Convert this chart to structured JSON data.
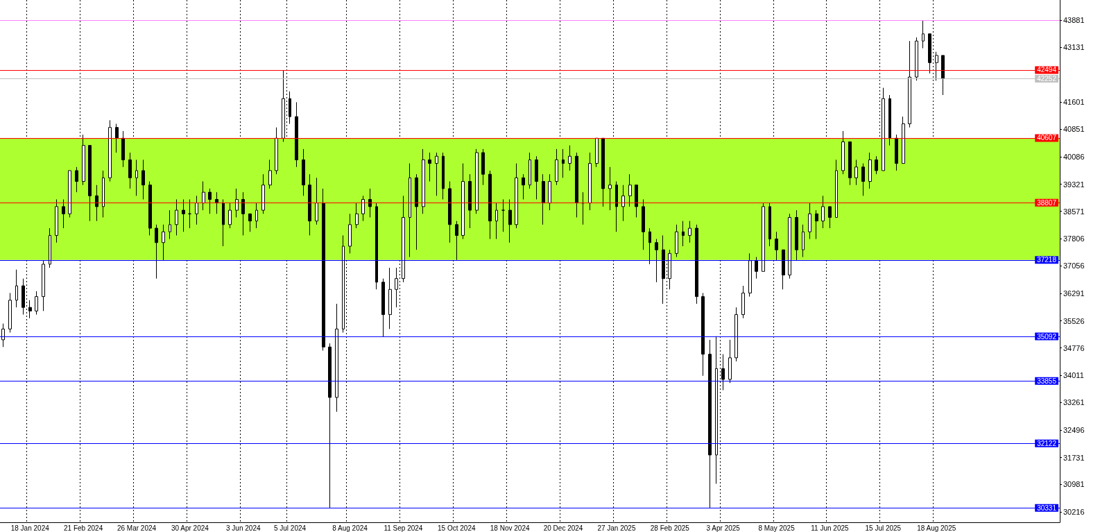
{
  "chart_data": {
    "type": "candlestick",
    "categories": [
      null,
      null,
      null,
      null,
      "18 Jan 2024",
      null,
      null,
      null,
      null,
      null,
      null,
      null,
      "21 Feb 2024",
      null,
      null,
      null,
      null,
      null,
      null,
      null,
      "26 Mar 2024",
      null,
      null,
      null,
      null,
      null,
      null,
      null,
      "30 Apr 2024",
      null,
      null,
      null,
      null,
      null,
      null,
      null,
      "3 Jun 2024",
      null,
      null,
      null,
      null,
      null,
      null,
      "5 Jul 2024",
      null,
      null,
      null,
      null,
      null,
      null,
      null,
      null,
      "8 Aug 2024",
      null,
      null,
      null,
      null,
      null,
      null,
      null,
      "11 Sep 2024",
      null,
      null,
      null,
      null,
      null,
      null,
      null,
      "15 Oct 2024",
      null,
      null,
      null,
      null,
      null,
      null,
      null,
      "18 Nov 2024",
      null,
      null,
      null,
      null,
      null,
      null,
      null,
      "20 Dec 2024",
      null,
      null,
      null,
      null,
      null,
      null,
      null,
      "27 Jan 2025",
      null,
      null,
      null,
      null,
      null,
      null,
      null,
      "28 Feb 2025",
      null,
      null,
      null,
      null,
      null,
      null,
      null,
      "3 Apr 2025",
      null,
      null,
      null,
      null,
      null,
      null,
      null,
      "8 May 2025",
      null,
      null,
      null,
      null,
      null,
      null,
      null,
      "11 Jun 2025",
      null,
      null,
      null,
      null,
      null,
      null,
      null,
      "15 Jul 2025",
      null,
      null,
      null,
      null,
      null,
      null,
      null,
      "18 Aug 2025",
      null,
      null,
      null,
      null,
      null,
      null,
      null,
      null,
      null,
      null,
      null,
      null,
      null,
      null,
      null,
      null,
      null,
      null
    ],
    "series": [
      {
        "color": "#000000",
        "ohlc": [
          [
            35000,
            35450,
            34800,
            35300
          ],
          [
            35300,
            36300,
            35200,
            36100
          ],
          [
            36100,
            36950,
            35900,
            36500
          ],
          [
            36500,
            36700,
            35700,
            35900
          ],
          [
            35900,
            36100,
            35600,
            35800
          ],
          [
            35800,
            36350,
            35700,
            36200
          ],
          [
            36200,
            37200,
            35800,
            37100
          ],
          [
            37100,
            38100,
            37000,
            37900
          ],
          [
            37900,
            38900,
            37700,
            38700
          ],
          [
            38700,
            38900,
            38100,
            38500
          ],
          [
            38500,
            39700,
            38400,
            39700
          ],
          [
            39700,
            39800,
            39100,
            39400
          ],
          [
            39400,
            40700,
            39300,
            40400
          ],
          [
            40400,
            40400,
            38300,
            39000
          ],
          [
            39000,
            39300,
            38300,
            38700
          ],
          [
            38700,
            39700,
            38400,
            39500
          ],
          [
            39500,
            41100,
            39400,
            40900
          ],
          [
            40900,
            41000,
            40200,
            40600
          ],
          [
            40600,
            40800,
            39800,
            40000
          ],
          [
            40000,
            40200,
            39200,
            39500
          ],
          [
            39500,
            40000,
            39000,
            39700
          ],
          [
            39700,
            40000,
            38900,
            39300
          ],
          [
            39300,
            39400,
            37900,
            38100
          ],
          [
            38100,
            38200,
            36700,
            37700
          ],
          [
            37700,
            38200,
            37200,
            38000
          ],
          [
            38000,
            38600,
            37800,
            38200
          ],
          [
            38200,
            38900,
            37900,
            38600
          ],
          [
            38600,
            38900,
            38000,
            38500
          ],
          [
            38500,
            38900,
            38100,
            38500
          ],
          [
            38500,
            39000,
            38200,
            38800
          ],
          [
            38800,
            39400,
            38600,
            39100
          ],
          [
            39100,
            39200,
            38500,
            38900
          ],
          [
            38900,
            39100,
            38500,
            38800
          ],
          [
            38800,
            38900,
            37600,
            38200
          ],
          [
            38200,
            38800,
            38100,
            38600
          ],
          [
            38600,
            39200,
            38400,
            38900
          ],
          [
            38900,
            39100,
            37900,
            38500
          ],
          [
            38500,
            38500,
            38000,
            38300
          ],
          [
            38300,
            38800,
            38100,
            38600
          ],
          [
            38600,
            39600,
            38500,
            39300
          ],
          [
            39300,
            40000,
            39200,
            39700
          ],
          [
            39700,
            40900,
            39600,
            40600
          ],
          [
            40600,
            42494,
            40500,
            41700
          ],
          [
            41700,
            41900,
            41000,
            41200
          ],
          [
            41200,
            41600,
            39800,
            40000
          ],
          [
            40000,
            40300,
            39000,
            39300
          ],
          [
            39300,
            39600,
            37900,
            38300
          ],
          [
            38300,
            39500,
            38200,
            38800
          ],
          [
            38800,
            39200,
            34700,
            34800
          ],
          [
            34800,
            34900,
            30331,
            33400
          ],
          [
            33400,
            36000,
            33000,
            35300
          ],
          [
            35300,
            37900,
            35200,
            37600
          ],
          [
            37600,
            38500,
            37400,
            38200
          ],
          [
            38200,
            38800,
            38100,
            38500
          ],
          [
            38500,
            39000,
            38300,
            38900
          ],
          [
            38900,
            39200,
            38400,
            38700
          ],
          [
            38700,
            38800,
            36400,
            36600
          ],
          [
            36600,
            36700,
            35092,
            35700
          ],
          [
            35700,
            37000,
            35300,
            36400
          ],
          [
            36400,
            37000,
            35900,
            36700
          ],
          [
            36700,
            39000,
            36600,
            38400
          ],
          [
            38400,
            39900,
            37300,
            39500
          ],
          [
            39500,
            39600,
            37500,
            38700
          ],
          [
            38700,
            40300,
            38500,
            40000
          ],
          [
            40000,
            40200,
            39400,
            39900
          ],
          [
            39900,
            40200,
            39000,
            40100
          ],
          [
            40100,
            40200,
            38900,
            39200
          ],
          [
            39200,
            39400,
            37700,
            38200
          ],
          [
            38200,
            38300,
            37218,
            37900
          ],
          [
            37900,
            39900,
            37800,
            39400
          ],
          [
            39400,
            39600,
            38100,
            38600
          ],
          [
            38600,
            40300,
            38500,
            40200
          ],
          [
            40200,
            40300,
            39300,
            39600
          ],
          [
            39600,
            39700,
            37800,
            38300
          ],
          [
            38300,
            38800,
            37800,
            38600
          ],
          [
            38600,
            38900,
            38000,
            38600
          ],
          [
            38600,
            38900,
            37700,
            38200
          ],
          [
            38200,
            39900,
            38100,
            39500
          ],
          [
            39500,
            39600,
            38900,
            39300
          ],
          [
            39300,
            40200,
            39200,
            40000
          ],
          [
            40000,
            40100,
            38900,
            39400
          ],
          [
            39400,
            39600,
            38200,
            38800
          ],
          [
            38800,
            39600,
            38600,
            39400
          ],
          [
            39400,
            40300,
            39300,
            40000
          ],
          [
            40000,
            40300,
            39500,
            39900
          ],
          [
            39900,
            40400,
            39700,
            40100
          ],
          [
            40100,
            40200,
            38400,
            38800
          ],
          [
            38800,
            39100,
            38200,
            38800
          ],
          [
            38800,
            40200,
            38600,
            39900
          ],
          [
            39900,
            40607,
            39800,
            40600
          ],
          [
            40600,
            40600,
            38700,
            39200
          ],
          [
            39200,
            39800,
            38600,
            39300
          ],
          [
            39300,
            39400,
            38000,
            38700
          ],
          [
            38700,
            39300,
            38300,
            39000
          ],
          [
            39000,
            39600,
            38700,
            39300
          ],
          [
            39300,
            39300,
            38400,
            38700
          ],
          [
            38700,
            38900,
            37500,
            38000
          ],
          [
            38000,
            38100,
            37100,
            37700
          ],
          [
            37700,
            37800,
            36600,
            37500
          ],
          [
            37500,
            37900,
            36000,
            36700
          ],
          [
            36700,
            37500,
            36400,
            37400
          ],
          [
            37400,
            38200,
            37300,
            38000
          ],
          [
            38000,
            38300,
            37600,
            37900
          ],
          [
            37900,
            38300,
            37700,
            38100
          ],
          [
            38100,
            38200,
            36000,
            36200
          ],
          [
            36200,
            36300,
            34000,
            34600
          ],
          [
            34600,
            35000,
            30331,
            31800
          ],
          [
            31800,
            35100,
            31000,
            34200
          ],
          [
            34200,
            34600,
            33600,
            33900
          ],
          [
            33900,
            35000,
            33800,
            34500
          ],
          [
            34500,
            35900,
            34400,
            35700
          ],
          [
            35700,
            36500,
            35600,
            36300
          ],
          [
            36300,
            37400,
            36200,
            37200
          ],
          [
            37200,
            37300,
            36700,
            36900
          ],
          [
            36900,
            38800,
            36900,
            38700
          ],
          [
            38700,
            38800,
            37600,
            37800
          ],
          [
            37800,
            38000,
            37200,
            37500
          ],
          [
            37500,
            37500,
            36400,
            36800
          ],
          [
            36800,
            38500,
            36700,
            38400
          ],
          [
            38400,
            38600,
            37200,
            37500
          ],
          [
            37500,
            38200,
            37300,
            38000
          ],
          [
            38000,
            38800,
            37800,
            38500
          ],
          [
            38500,
            38600,
            37800,
            38300
          ],
          [
            38300,
            39000,
            38100,
            38700
          ],
          [
            38700,
            38700,
            38100,
            38400
          ],
          [
            38400,
            40000,
            38400,
            39700
          ],
          [
            39700,
            40800,
            39600,
            40500
          ],
          [
            40500,
            40500,
            39300,
            39500
          ],
          [
            39500,
            40000,
            39300,
            39800
          ],
          [
            39800,
            39900,
            39000,
            39400
          ],
          [
            39400,
            40200,
            39200,
            40000
          ],
          [
            40000,
            40100,
            39600,
            39700
          ],
          [
            39700,
            42000,
            39700,
            41700
          ],
          [
            41700,
            41800,
            40400,
            40600
          ],
          [
            40600,
            40700,
            39700,
            39900
          ],
          [
            39900,
            41200,
            39900,
            41000
          ],
          [
            41000,
            43300,
            40900,
            42300
          ],
          [
            42300,
            43400,
            42200,
            43300
          ],
          [
            43300,
            43881,
            43100,
            43500
          ],
          [
            43500,
            43500,
            42400,
            42700
          ],
          [
            42700,
            43000,
            42200,
            42900
          ],
          [
            42900,
            42900,
            41800,
            42252
          ],
          null,
          null,
          null,
          null,
          null,
          null,
          null,
          null,
          null,
          null,
          null,
          null,
          null,
          null,
          null,
          null,
          null
        ]
      }
    ],
    "ylim": [
      29930,
      44440
    ],
    "yticks": [
      43881,
      43131,
      41601,
      40851,
      40086,
      39321,
      38571,
      37806,
      37056,
      36291,
      35526,
      34776,
      34011,
      33261,
      32496,
      31731,
      30981,
      30216
    ],
    "grid": "x",
    "ref_lines": [
      {
        "axis": "y",
        "value": 43881,
        "color": "#ff80ff",
        "label": null
      },
      {
        "axis": "y",
        "value": 42494,
        "color": "#ff0000",
        "label": "42494"
      },
      {
        "axis": "y",
        "value": 42252,
        "color": "#c0c0c0",
        "label": "42252"
      },
      {
        "axis": "y",
        "value": 40607,
        "color": "#ff0000",
        "label": "40607"
      },
      {
        "axis": "y",
        "value": 38807,
        "color": "#ff0000",
        "label": "38807"
      },
      {
        "axis": "y",
        "value": 37218,
        "color": "#0000ff",
        "label": "37218"
      },
      {
        "axis": "y",
        "value": 35092,
        "color": "#0000ff",
        "label": "35092"
      },
      {
        "axis": "y",
        "value": 33855,
        "color": "#0000ff",
        "label": "33855"
      },
      {
        "axis": "y",
        "value": 32122,
        "color": "#0000ff",
        "label": "32122"
      },
      {
        "axis": "y",
        "value": 30331,
        "color": "#0000ff",
        "label": "30331"
      }
    ],
    "bands": [
      {
        "axis": "y",
        "from": 37218,
        "to": 40607,
        "color": "#adff2f"
      }
    ]
  }
}
